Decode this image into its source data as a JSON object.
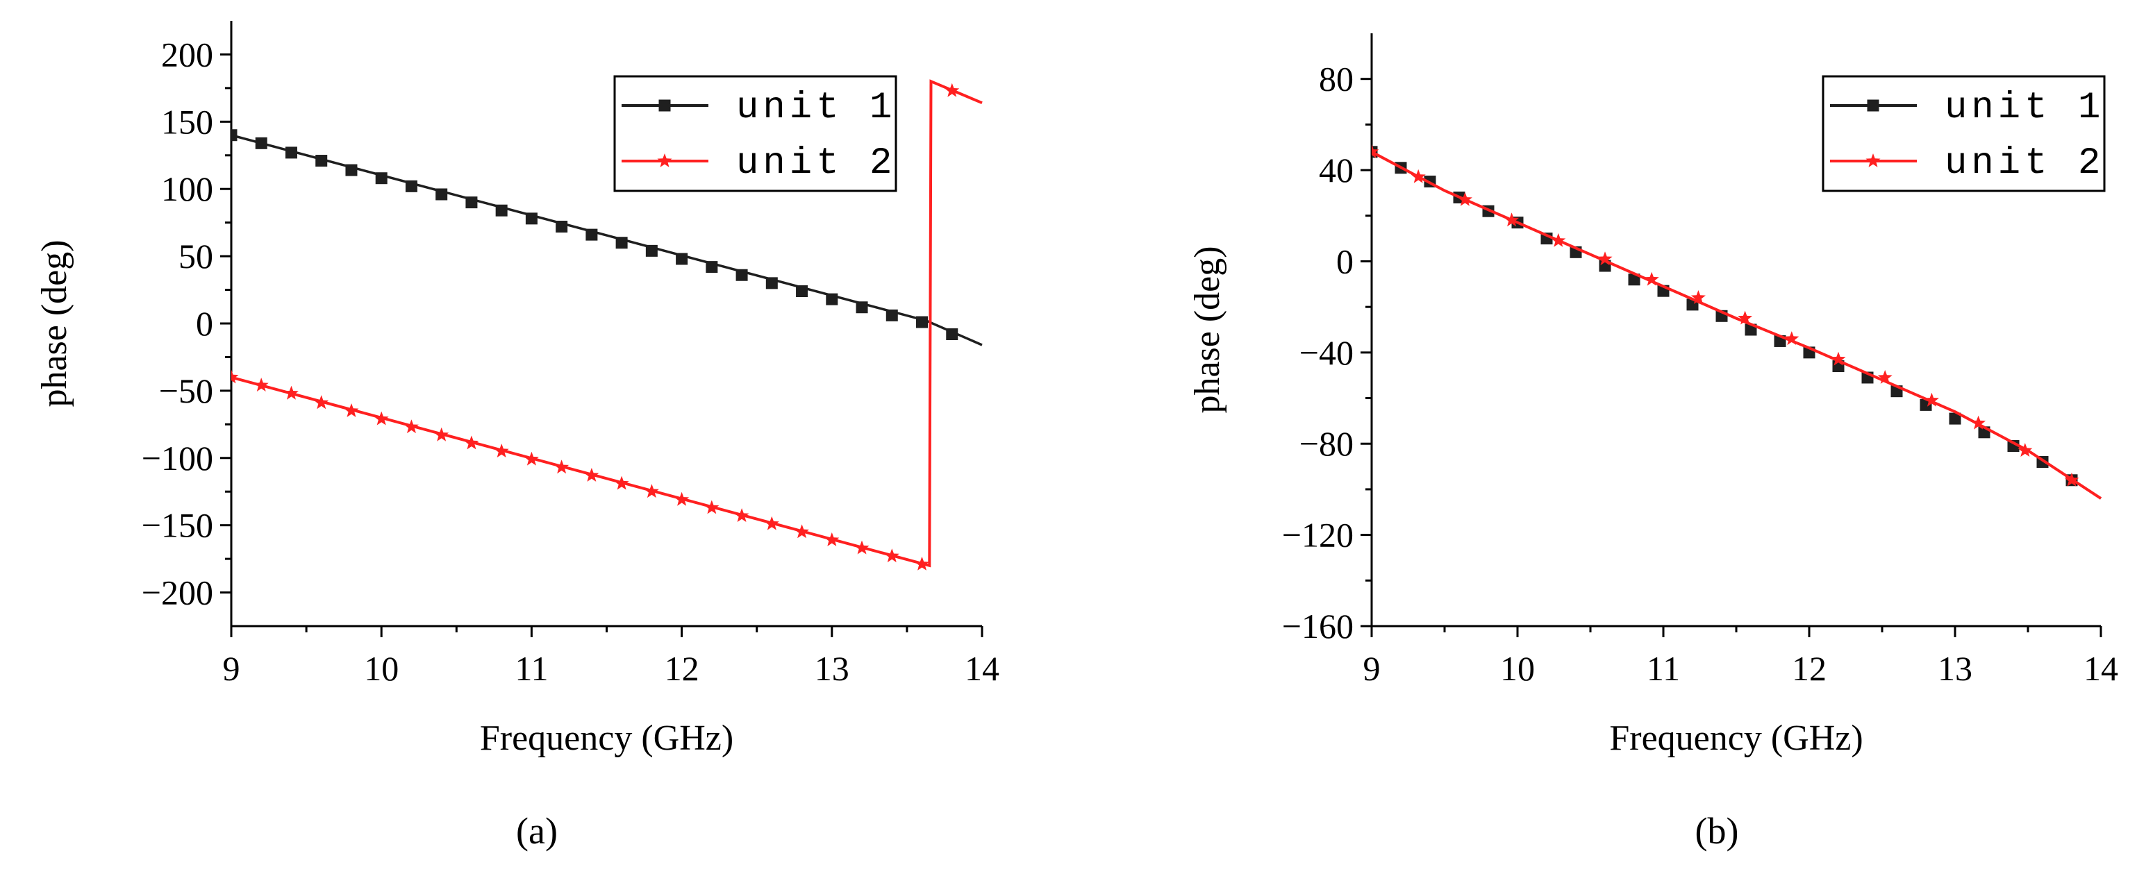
{
  "colors": {
    "unit1": "#1f1f1f",
    "unit2": "#ff2020",
    "axis": "#000000"
  },
  "chart_data": [
    {
      "type": "line",
      "caption": "(a)",
      "xlabel": "Frequency (GHz)",
      "ylabel": "phase (deg)",
      "xlim": [
        9,
        14
      ],
      "ylim": [
        -225,
        225
      ],
      "xticks": [
        9,
        10,
        11,
        12,
        13,
        14
      ],
      "xtick_labels": [
        "9",
        "10",
        "11",
        "12",
        "13",
        "14"
      ],
      "yticks": [
        200,
        150,
        100,
        50,
        0,
        -50,
        -100,
        -150,
        -200
      ],
      "ytick_labels": [
        "200",
        "150",
        "100",
        "50",
        "0",
        "−50",
        "−100",
        "−150",
        "−200"
      ],
      "yminor": [
        175,
        125,
        75,
        25,
        -25,
        -75,
        -125,
        -175
      ],
      "legend_position": "top-right",
      "series": [
        {
          "name": "unit 1",
          "marker": "square",
          "x": [
            9.0,
            13.63,
            14.0
          ],
          "y": [
            140,
            2,
            -16
          ],
          "marker_x": [
            9.0,
            9.2,
            9.4,
            9.6,
            9.8,
            10.0,
            10.2,
            10.4,
            10.6,
            10.8,
            11.0,
            11.2,
            11.4,
            11.6,
            11.8,
            12.0,
            12.2,
            12.4,
            12.6,
            12.8,
            13.0,
            13.2,
            13.4,
            13.6,
            13.8
          ],
          "marker_y": [
            140,
            134,
            127,
            121,
            114,
            108,
            102,
            96,
            90,
            84,
            78,
            72,
            66,
            60,
            54,
            48,
            42,
            36,
            30,
            24,
            18,
            12,
            6,
            1,
            -8
          ]
        },
        {
          "name": "unit 2",
          "marker": "star",
          "x": [
            9.0,
            13.65,
            13.66,
            14.0
          ],
          "y": [
            -40,
            -180,
            180,
            164
          ],
          "marker_x": [
            9.0,
            9.2,
            9.4,
            9.6,
            9.8,
            10.0,
            10.2,
            10.4,
            10.6,
            10.8,
            11.0,
            11.2,
            11.4,
            11.6,
            11.8,
            12.0,
            12.2,
            12.4,
            12.6,
            12.8,
            13.0,
            13.2,
            13.4,
            13.6,
            13.8
          ],
          "marker_y": [
            -40,
            -46,
            -52,
            -59,
            -65,
            -71,
            -77,
            -83,
            -89,
            -95,
            -101,
            -107,
            -113,
            -119,
            -125,
            -131,
            -137,
            -143,
            -149,
            -155,
            -161,
            -167,
            -173,
            -179,
            173
          ]
        }
      ]
    },
    {
      "type": "line",
      "caption": "(b)",
      "xlabel": "Frequency (GHz)",
      "ylabel": "phase (deg)",
      "xlim": [
        9,
        14
      ],
      "ylim": [
        -160,
        100
      ],
      "xticks": [
        9,
        10,
        11,
        12,
        13,
        14
      ],
      "xtick_labels": [
        "9",
        "10",
        "11",
        "12",
        "13",
        "14"
      ],
      "yticks": [
        80,
        40,
        0,
        -40,
        -80,
        -120,
        -160
      ],
      "ytick_labels": [
        "80",
        "40",
        "0",
        "−40",
        "−80",
        "−120",
        "−160"
      ],
      "yminor": [
        60,
        20,
        -20,
        -60,
        -100,
        -140
      ],
      "legend_position": "top-right",
      "series": [
        {
          "name": "unit 1",
          "marker": "square",
          "x": [
            9.0,
            9.5,
            10.0,
            10.5,
            11.0,
            11.5,
            12.0,
            12.5,
            13.0,
            13.5,
            14.0
          ],
          "y": [
            48,
            31,
            17,
            3,
            -11,
            -25,
            -38,
            -52,
            -66,
            -83,
            -104
          ],
          "marker_x": [
            9.0,
            9.2,
            9.4,
            9.6,
            9.8,
            10.0,
            10.2,
            10.4,
            10.6,
            10.8,
            11.0,
            11.2,
            11.4,
            11.6,
            11.8,
            12.0,
            12.2,
            12.4,
            12.6,
            12.8,
            13.0,
            13.2,
            13.4,
            13.6,
            13.8
          ],
          "marker_y": [
            48,
            41,
            35,
            28,
            22,
            17,
            10,
            4,
            -2,
            -8,
            -13,
            -19,
            -24,
            -30,
            -35,
            -40,
            -46,
            -51,
            -57,
            -63,
            -69,
            -75,
            -81,
            -88,
            -96
          ]
        },
        {
          "name": "unit 2",
          "marker": "star",
          "x": [
            9.0,
            9.5,
            10.0,
            10.5,
            11.0,
            11.5,
            12.0,
            12.5,
            13.0,
            13.5,
            14.0
          ],
          "y": [
            48,
            31,
            17,
            3,
            -11,
            -25,
            -38,
            -52,
            -66,
            -83,
            -104
          ],
          "marker_x": [
            9.0,
            9.32,
            9.64,
            9.96,
            10.28,
            10.6,
            10.92,
            11.24,
            11.56,
            11.88,
            12.2,
            12.52,
            12.84,
            13.16,
            13.48,
            13.8
          ],
          "marker_y": [
            48,
            37,
            27,
            18,
            9,
            1,
            -8,
            -16,
            -25,
            -34,
            -43,
            -51,
            -61,
            -71,
            -83,
            -96
          ]
        }
      ]
    }
  ]
}
